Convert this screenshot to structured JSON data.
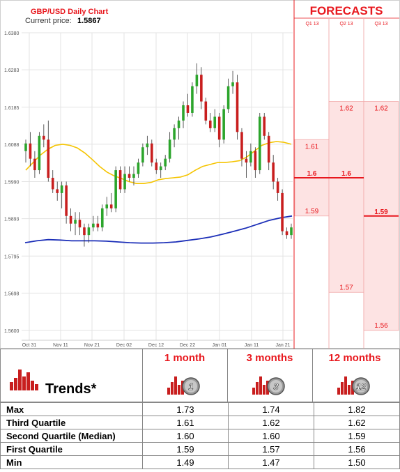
{
  "chart": {
    "title": "GBP/USD Daily Chart",
    "current_price_label": "Current price:",
    "current_price": "1.5867",
    "y_ticks": [
      "1.6380",
      "1.6283",
      "1.6185",
      "1.6088",
      "1.5990",
      "1.5893",
      "1.5795",
      "1.5698",
      "1.5600"
    ],
    "x_ticks": [
      "Oct 31",
      "Nov 11",
      "Nov 21",
      "Dec 02",
      "Dec 12",
      "Dec 22",
      "Jan 01",
      "Jan 11",
      "Jan 21"
    ]
  },
  "forecasts": {
    "title": "FORECASTS",
    "columns": [
      "Q1 13",
      "Q2 13",
      "Q3 13"
    ]
  },
  "chart_data": {
    "type": "candlestick",
    "title": "GBP/USD Daily Chart",
    "ylim": [
      1.56,
      1.638
    ],
    "series": [
      {
        "name": "candles",
        "values": [
          [
            1.607,
            1.61,
            1.604,
            1.609
          ],
          [
            1.609,
            1.612,
            1.603,
            1.605
          ],
          [
            1.605,
            1.607,
            1.6,
            1.602
          ],
          [
            1.602,
            1.612,
            1.601,
            1.611
          ],
          [
            1.611,
            1.614,
            1.608,
            1.61
          ],
          [
            1.61,
            1.615,
            1.599,
            1.6
          ],
          [
            1.6,
            1.602,
            1.596,
            1.597
          ],
          [
            1.597,
            1.599,
            1.594,
            1.596
          ],
          [
            1.596,
            1.599,
            1.592,
            1.598
          ],
          [
            1.598,
            1.599,
            1.588,
            1.59
          ],
          [
            1.59,
            1.592,
            1.586,
            1.588
          ],
          [
            1.588,
            1.591,
            1.585,
            1.589
          ],
          [
            1.589,
            1.591,
            1.585,
            1.587
          ],
          [
            1.587,
            1.588,
            1.582,
            1.585
          ],
          [
            1.585,
            1.588,
            1.583,
            1.587
          ],
          [
            1.587,
            1.59,
            1.586,
            1.588
          ],
          [
            1.588,
            1.59,
            1.586,
            1.587
          ],
          [
            1.587,
            1.593,
            1.586,
            1.592
          ],
          [
            1.592,
            1.595,
            1.59,
            1.593
          ],
          [
            1.593,
            1.596,
            1.591,
            1.592
          ],
          [
            1.592,
            1.603,
            1.591,
            1.602
          ],
          [
            1.602,
            1.603,
            1.596,
            1.597
          ],
          [
            1.597,
            1.603,
            1.596,
            1.601
          ],
          [
            1.601,
            1.603,
            1.599,
            1.6
          ],
          [
            1.6,
            1.603,
            1.598,
            1.601
          ],
          [
            1.601,
            1.605,
            1.6,
            1.604
          ],
          [
            1.604,
            1.609,
            1.603,
            1.608
          ],
          [
            1.608,
            1.611,
            1.606,
            1.609
          ],
          [
            1.609,
            1.61,
            1.603,
            1.604
          ],
          [
            1.604,
            1.605,
            1.601,
            1.602
          ],
          [
            1.602,
            1.604,
            1.6,
            1.603
          ],
          [
            1.603,
            1.606,
            1.602,
            1.605
          ],
          [
            1.605,
            1.612,
            1.604,
            1.61
          ],
          [
            1.61,
            1.614,
            1.608,
            1.613
          ],
          [
            1.613,
            1.616,
            1.61,
            1.615
          ],
          [
            1.615,
            1.62,
            1.613,
            1.619
          ],
          [
            1.619,
            1.622,
            1.616,
            1.617
          ],
          [
            1.617,
            1.625,
            1.616,
            1.624
          ],
          [
            1.624,
            1.63,
            1.622,
            1.627
          ],
          [
            1.627,
            1.629,
            1.618,
            1.62
          ],
          [
            1.62,
            1.621,
            1.614,
            1.615
          ],
          [
            1.615,
            1.617,
            1.612,
            1.613
          ],
          [
            1.613,
            1.618,
            1.612,
            1.616
          ],
          [
            1.616,
            1.617,
            1.608,
            1.61
          ],
          [
            1.61,
            1.619,
            1.609,
            1.618
          ],
          [
            1.618,
            1.626,
            1.617,
            1.624
          ],
          [
            1.624,
            1.628,
            1.622,
            1.625
          ],
          [
            1.625,
            1.627,
            1.61,
            1.612
          ],
          [
            1.612,
            1.613,
            1.603,
            1.605
          ],
          [
            1.605,
            1.607,
            1.6,
            1.604
          ],
          [
            1.604,
            1.609,
            1.603,
            1.607
          ],
          [
            1.607,
            1.608,
            1.6,
            1.602
          ],
          [
            1.602,
            1.617,
            1.601,
            1.616
          ],
          [
            1.616,
            1.617,
            1.61,
            1.611
          ],
          [
            1.611,
            1.612,
            1.602,
            1.604
          ],
          [
            1.604,
            1.606,
            1.597,
            1.599
          ],
          [
            1.599,
            1.6,
            1.594,
            1.596
          ],
          [
            1.596,
            1.597,
            1.585,
            1.586
          ],
          [
            1.586,
            1.587,
            1.584,
            1.585
          ],
          [
            1.585,
            1.588,
            1.584,
            1.587
          ]
        ]
      },
      {
        "name": "MA short",
        "color": "#f5c400",
        "values": [
          1.602,
          1.604,
          1.606,
          1.6075,
          1.6085,
          1.6088,
          1.6085,
          1.6078,
          1.6065,
          1.6048,
          1.603,
          1.6015,
          1.6005,
          1.5998,
          1.599,
          1.5985,
          1.5985,
          1.5988,
          1.5995,
          1.5998,
          1.6,
          1.6002,
          1.6008,
          1.602,
          1.603,
          1.6035,
          1.604,
          1.604,
          1.6042,
          1.6045,
          1.6055,
          1.607,
          1.6085,
          1.6092,
          1.6095,
          1.6093,
          1.6088
        ]
      },
      {
        "name": "MA long",
        "color": "#1c2fb8",
        "values": [
          1.583,
          1.5835,
          1.5838,
          1.5837,
          1.5835,
          1.5835,
          1.5835,
          1.5834,
          1.5832,
          1.583,
          1.5829,
          1.5829,
          1.583,
          1.5832,
          1.5836,
          1.584,
          1.5845,
          1.5852,
          1.586,
          1.5868,
          1.5878,
          1.5888,
          1.5895,
          1.59
        ]
      }
    ],
    "forecasts": [
      {
        "period": "Q1 13",
        "upper": "1.61",
        "median": "1.6",
        "lower": "1.59"
      },
      {
        "period": "Q2 13",
        "upper": "1.62",
        "median": "1.6",
        "lower": "1.57"
      },
      {
        "period": "Q3 13",
        "upper": "1.62",
        "median": "1.59",
        "lower": "1.56"
      }
    ]
  },
  "trends": {
    "title": "Trends*",
    "horizons": [
      {
        "label": "1 month",
        "badge": "1"
      },
      {
        "label": "3 months",
        "badge": "3"
      },
      {
        "label": "12 months",
        "badge": "12"
      }
    ],
    "rows": [
      {
        "label": "Max",
        "values": [
          "1.73",
          "1.74",
          "1.82"
        ]
      },
      {
        "label": "Third Quartile",
        "values": [
          "1.61",
          "1.62",
          "1.62"
        ]
      },
      {
        "label": "Second Quartile (Median)",
        "values": [
          "1.60",
          "1.60",
          "1.59"
        ]
      },
      {
        "label": "First Quartile",
        "values": [
          "1.59",
          "1.57",
          "1.56"
        ]
      },
      {
        "label": "Min",
        "values": [
          "1.49",
          "1.47",
          "1.50"
        ]
      }
    ]
  },
  "colors": {
    "accent": "#e8181e",
    "bull": "#2ca52c",
    "bear": "#c81e1e",
    "forecast_fill": "#fde3e3"
  }
}
